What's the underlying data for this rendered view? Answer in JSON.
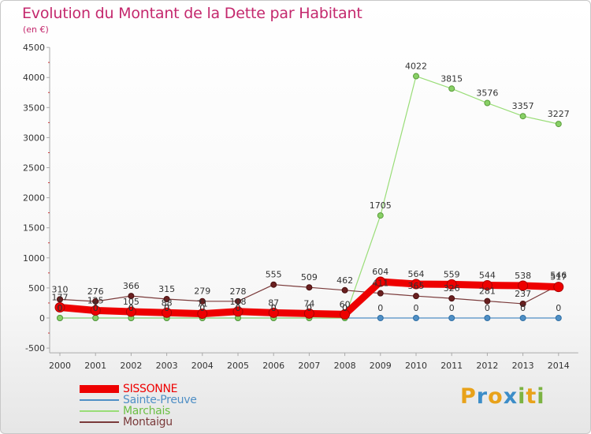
{
  "header": {
    "title": "Evolution du Montant de la Dette par Habitant",
    "subtitle": "(en €)"
  },
  "logo": {
    "letters": [
      "P",
      "r",
      "o",
      "x",
      "i",
      "t",
      "i"
    ],
    "colors": [
      "#e8a21a",
      "#3c8dc8",
      "#e8a21a",
      "#3c8dc8",
      "#7cb342",
      "#e8a21a",
      "#7cb342"
    ]
  },
  "chart_data": {
    "type": "line",
    "title": "Evolution du Montant de la Dette par Habitant",
    "subtitle": "(en €)",
    "xlabel": "",
    "ylabel": "",
    "x": [
      "2000",
      "2001",
      "2002",
      "2003",
      "2004",
      "2005",
      "2006",
      "2007",
      "2008",
      "2009",
      "2010",
      "2011",
      "2012",
      "2013",
      "2014"
    ],
    "ylim": [
      -500,
      4500
    ],
    "yticks": [
      -500,
      0,
      500,
      1000,
      1500,
      2000,
      2500,
      3000,
      3500,
      4000,
      4500
    ],
    "grid": false,
    "legend_position": "bottom-left",
    "series": [
      {
        "name": "SISSONNE",
        "color": "#ee0000",
        "values": [
          177,
          125,
          105,
          88,
          71,
          108,
          87,
          74,
          60,
          604,
          564,
          559,
          544,
          538,
          517
        ],
        "labels": [
          "177",
          "125",
          "105",
          "88",
          "71",
          "108",
          "87",
          "74",
          "60",
          "604",
          "564",
          "559",
          "544",
          "538",
          "517"
        ]
      },
      {
        "name": "Sainte-Preuve",
        "color": "#4f8fc5",
        "values": [
          0,
          0,
          0,
          0,
          0,
          0,
          0,
          0,
          0,
          0,
          0,
          0,
          0,
          0,
          0
        ],
        "labels": [
          "0",
          "0",
          "0",
          "0",
          "0",
          "0",
          "0",
          "0",
          "0",
          "0",
          "0",
          "0",
          "0",
          "0",
          "0"
        ]
      },
      {
        "name": "Marchais",
        "color": "#99dd77",
        "values": [
          0,
          0,
          0,
          0,
          0,
          0,
          0,
          0,
          0,
          1705,
          4022,
          3815,
          3576,
          3357,
          3227
        ],
        "labels": [
          "0",
          "0",
          "0",
          "0",
          "0",
          "0",
          "0",
          "0",
          "0",
          "1705",
          "4022",
          "3815",
          "3576",
          "3357",
          "3227"
        ]
      },
      {
        "name": "Montaigu",
        "color": "#7a3a3a",
        "values": [
          310,
          276,
          366,
          315,
          279,
          278,
          555,
          509,
          462,
          411,
          365,
          326,
          281,
          237,
          546
        ],
        "labels": [
          "310",
          "276",
          "366",
          "315",
          "279",
          "278",
          "555",
          "509",
          "462",
          "411",
          "365",
          "326",
          "281",
          "237",
          "546"
        ]
      }
    ]
  }
}
